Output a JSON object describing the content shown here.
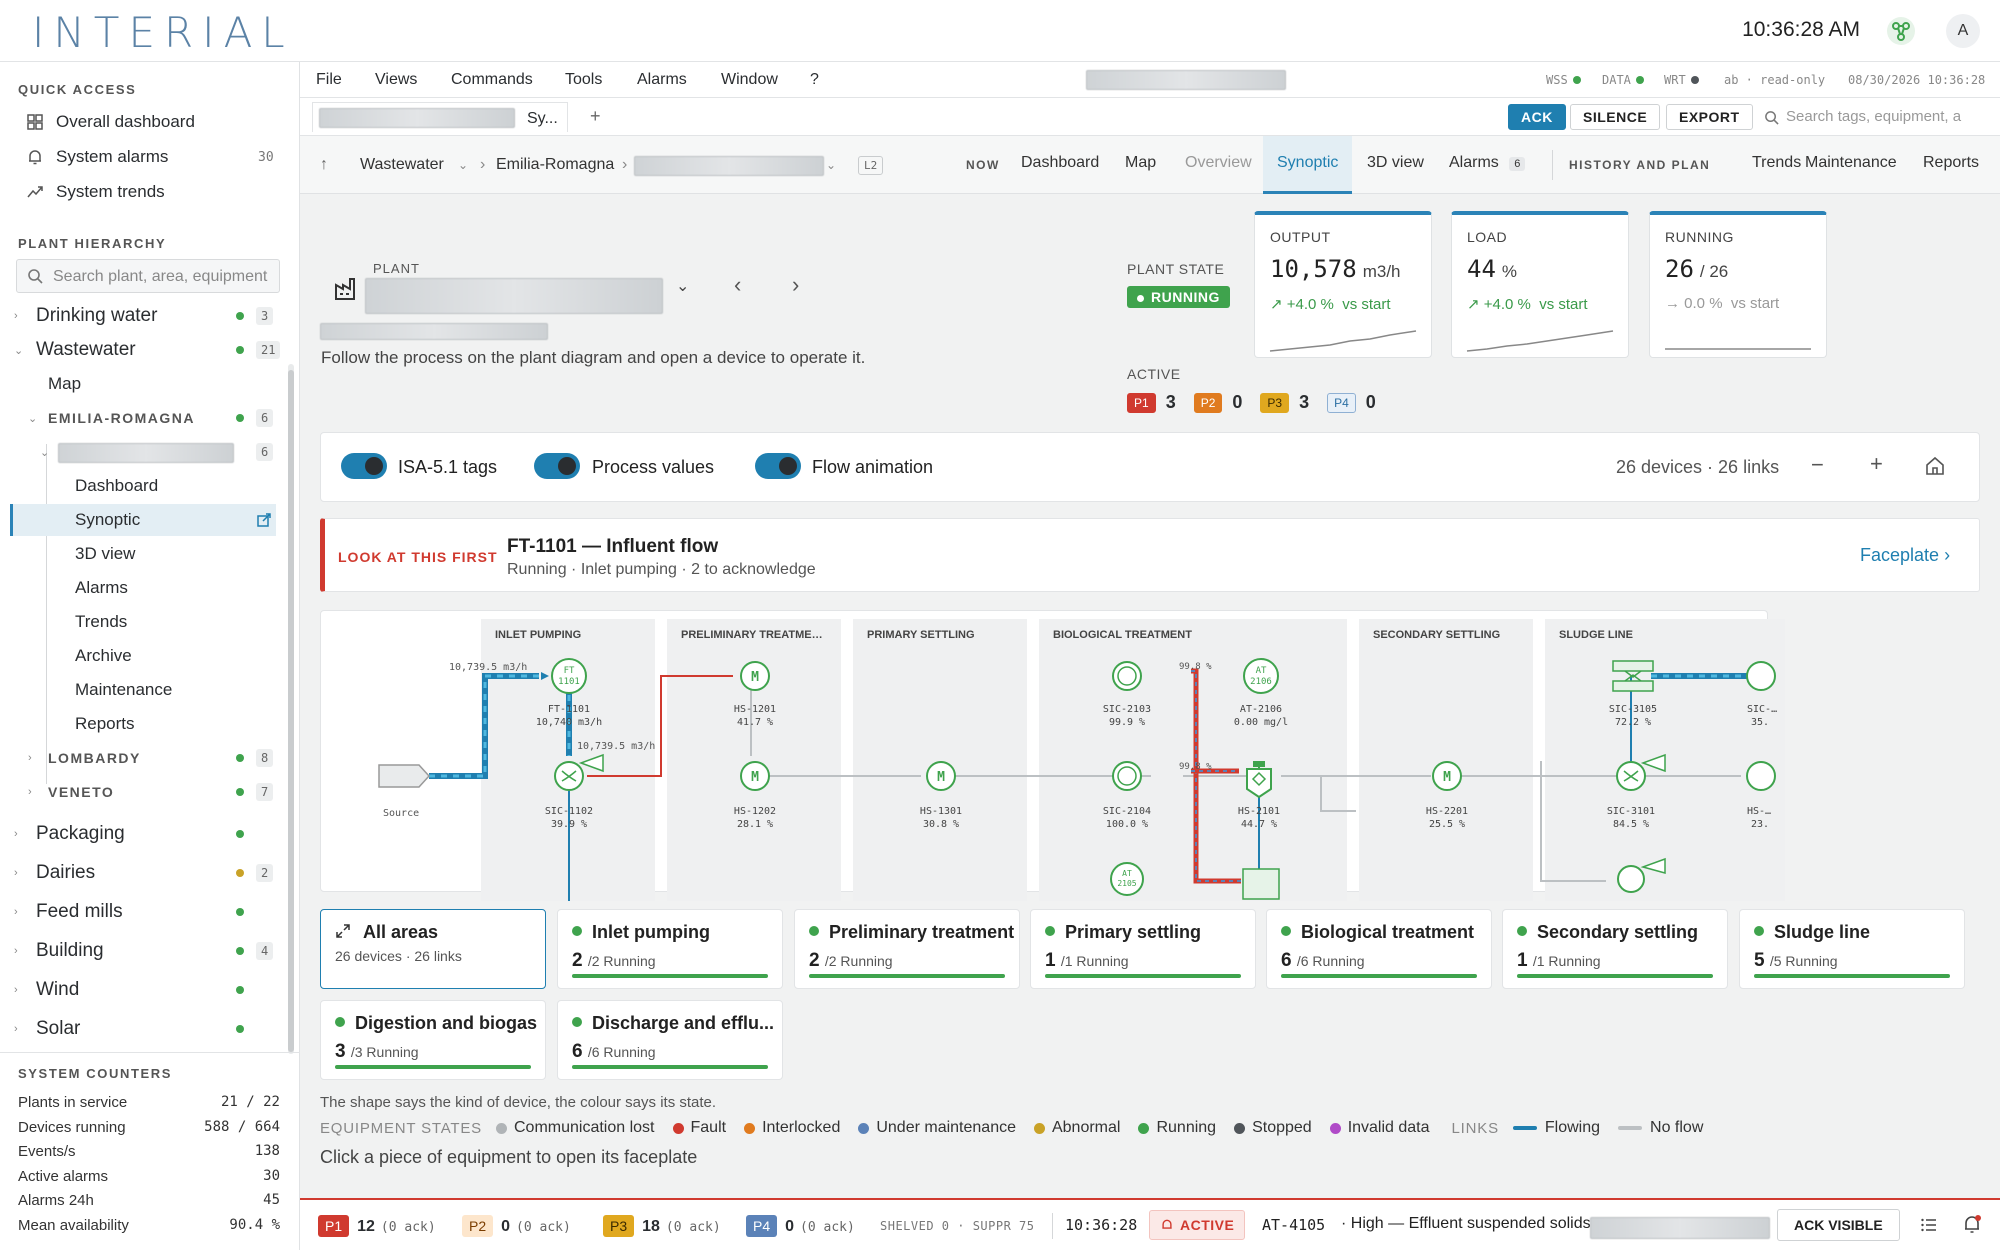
{
  "app": {
    "logo": "INTERIAL",
    "clock": "10:36:28 AM",
    "avatar": "A"
  },
  "sidebar": {
    "quick_access_title": "QUICK ACCESS",
    "quick_access": [
      {
        "label": "Overall dashboard",
        "icon": "grid-icon",
        "count": ""
      },
      {
        "label": "System alarms",
        "icon": "bell-icon",
        "count": "30"
      },
      {
        "label": "System trends",
        "icon": "trend-icon",
        "count": ""
      }
    ],
    "hierarchy_title": "PLANT HIERARCHY",
    "search_placeholder": "Search plant, area, equipment",
    "tree": [
      {
        "label": "Drinking water",
        "count": "3",
        "status": "#3fa34d"
      },
      {
        "label": "Wastewater",
        "count": "21",
        "status": "#3fa34d"
      },
      {
        "label": "Map"
      },
      {
        "label": "EMILIA-ROMAGNA",
        "count": "6",
        "status": "#3fa34d"
      },
      {
        "label": "",
        "count": "6"
      },
      {
        "label": "Dashboard"
      },
      {
        "label": "Synoptic"
      },
      {
        "label": "3D view"
      },
      {
        "label": "Alarms"
      },
      {
        "label": "Trends"
      },
      {
        "label": "Archive"
      },
      {
        "label": "Maintenance"
      },
      {
        "label": "Reports"
      },
      {
        "label": "LOMBARDY",
        "count": "8",
        "status": "#3fa34d"
      },
      {
        "label": "VENETO",
        "count": "7",
        "status": "#3fa34d"
      },
      {
        "label": "Packaging",
        "count": "",
        "status": "#3fa34d"
      },
      {
        "label": "Dairies",
        "count": "2",
        "status": "#c9a227"
      },
      {
        "label": "Feed mills",
        "count": "",
        "status": "#3fa34d"
      },
      {
        "label": "Building",
        "count": "4",
        "status": "#3fa34d"
      },
      {
        "label": "Wind",
        "count": "",
        "status": "#3fa34d"
      },
      {
        "label": "Solar",
        "count": "",
        "status": "#3fa34d"
      }
    ],
    "counters_title": "SYSTEM COUNTERS",
    "counters": [
      {
        "label": "Plants in service",
        "value": "21 / 22"
      },
      {
        "label": "Devices running",
        "value": "588 / 664"
      },
      {
        "label": "Events/s",
        "value": "138"
      },
      {
        "label": "Active alarms",
        "value": "30"
      },
      {
        "label": "Alarms 24h",
        "value": "45"
      },
      {
        "label": "Mean availability",
        "value": "90.4 %"
      }
    ]
  },
  "menubar": {
    "items": [
      "File",
      "Views",
      "Commands",
      "Tools",
      "Alarms",
      "Window",
      "?"
    ],
    "status": {
      "wss": "WSS",
      "data": "DATA",
      "wrt": "WRT",
      "user": "ab · read-only",
      "datetime": "08/30/2026 10:36:28"
    }
  },
  "tabbar": {
    "tab_label": "Sy...",
    "add": "+",
    "ack": "ACK",
    "silence": "SILENCE",
    "export": "EXPORT",
    "search_placeholder": "Search tags, equipment, a"
  },
  "navbar": {
    "crumbs": [
      "Wastewater",
      "Emilia-Romagna"
    ],
    "level": "L2",
    "now_label": "NOW",
    "tabs": [
      "Dashboard",
      "Map",
      "Overview",
      "Synoptic",
      "3D view",
      "Alarms"
    ],
    "alarms_count": "6",
    "history_label": "HISTORY AND PLAN",
    "history_tabs": [
      "Trends",
      "Maintenance",
      "Reports"
    ]
  },
  "plant": {
    "label": "PLANT",
    "hint": "Follow the process on the plant diagram and open a device to operate it.",
    "state_label": "PLANT STATE",
    "state": "RUNNING",
    "active_label": "ACTIVE",
    "priorities": [
      {
        "p": "P1",
        "n": "3",
        "bg": "#d03a2f",
        "fg": "#ffffff"
      },
      {
        "p": "P2",
        "n": "0",
        "bg": "#e07b1f",
        "fg": "#ffffff"
      },
      {
        "p": "P3",
        "n": "3",
        "bg": "#e0a81f",
        "fg": "#3a2a00"
      },
      {
        "p": "P4",
        "n": "0",
        "bg": "#e8f0f8",
        "fg": "#2b6fa3"
      }
    ]
  },
  "kpis": [
    {
      "title": "OUTPUT",
      "value": "10,578",
      "unit": "m3/h",
      "delta": "+4.0 %",
      "delta_note": "vs start"
    },
    {
      "title": "LOAD",
      "value": "44",
      "unit": "%",
      "delta": "+4.0 %",
      "delta_note": "vs start"
    },
    {
      "title": "RUNNING",
      "value": "26",
      "unit": "/ 26",
      "delta": "0.0 %",
      "delta_note": "vs start"
    }
  ],
  "toggles": {
    "isa": "ISA-5.1 tags",
    "values": "Process values",
    "flow": "Flow animation",
    "summary": "26 devices · 26 links",
    "zoom_out": "−",
    "zoom_in": "+"
  },
  "attention": {
    "label": "LOOK AT THIS FIRST",
    "title": "FT-1101 — Influent flow",
    "sub": "Running · Inlet pumping · 2 to acknowledge",
    "link": "Faceplate"
  },
  "diagram": {
    "sections": [
      "INLET PUMPING",
      "PRELIMINARY TREATME…",
      "PRIMARY SETTLING",
      "BIOLOGICAL TREATMENT",
      "SECONDARY SETTLING",
      "SLUDGE LINE"
    ],
    "source": "Source",
    "devices": [
      {
        "tag": "FT-1101",
        "sym": "FT",
        "num": "1101",
        "value": "10,740 m3/h"
      },
      {
        "tag": "SIC-1102",
        "value": "39.9 %"
      },
      {
        "tag": "HS-1201",
        "sym": "M",
        "value": "41.7 %"
      },
      {
        "tag": "HS-1202",
        "sym": "M",
        "value": "28.1 %"
      },
      {
        "tag": "HS-1301",
        "sym": "M",
        "value": "30.8 %"
      },
      {
        "tag": "SIC-2103",
        "value": "99.9 %"
      },
      {
        "tag": "AT-2106",
        "sym": "AT",
        "num": "2106",
        "value": "0.00 mg/l"
      },
      {
        "tag": "SIC-2104",
        "value": "100.0 %"
      },
      {
        "tag": "HS-2101",
        "value": "44.7 %"
      },
      {
        "tag": "AT",
        "num": "2105"
      },
      {
        "tag": "HS-2201",
        "sym": "M",
        "value": "25.5 %"
      },
      {
        "tag": "SIC-3105",
        "value": "72.2 %"
      },
      {
        "tag": "SIC-3101",
        "value": "84.5 %"
      },
      {
        "tag": "SIC-…",
        "value": "35."
      },
      {
        "tag": "HS-…",
        "value": "23."
      }
    ],
    "flows": [
      "10,739.5 m3/h",
      "10,739.5 m3/h",
      "99.8 %",
      "99.8 %"
    ]
  },
  "areas": [
    {
      "name": "All areas",
      "sub": "26 devices · 26 links"
    },
    {
      "name": "Inlet pumping",
      "run": "2",
      "of": "/2 Running"
    },
    {
      "name": "Preliminary treatment",
      "run": "2",
      "of": "/2 Running"
    },
    {
      "name": "Primary settling",
      "run": "1",
      "of": "/1 Running"
    },
    {
      "name": "Biological treatment",
      "run": "6",
      "of": "/6 Running"
    },
    {
      "name": "Secondary settling",
      "run": "1",
      "of": "/1 Running"
    },
    {
      "name": "Sludge line",
      "run": "5",
      "of": "/5 Running"
    },
    {
      "name": "Digestion and biogas",
      "run": "3",
      "of": "/3 Running"
    },
    {
      "name": "Discharge and efflu...",
      "run": "6",
      "of": "/6 Running"
    }
  ],
  "legend": {
    "hint": "The shape says the kind of device, the colour says its state.",
    "states_label": "EQUIPMENT STATES",
    "states": [
      {
        "label": "Communication lost",
        "color": "#b0b4b7"
      },
      {
        "label": "Fault",
        "color": "#d03a2f"
      },
      {
        "label": "Interlocked",
        "color": "#e07b1f"
      },
      {
        "label": "Under maintenance",
        "color": "#5b82b8"
      },
      {
        "label": "Abnormal",
        "color": "#c9a227"
      },
      {
        "label": "Running",
        "color": "#3fa34d"
      },
      {
        "label": "Stopped",
        "color": "#50555a"
      },
      {
        "label": "Invalid data",
        "color": "#b04bc8"
      }
    ],
    "links_label": "LINKS",
    "links": [
      {
        "label": "Flowing",
        "color": "#1f7fb0"
      },
      {
        "label": "No flow",
        "color": "#bcc0c3"
      }
    ],
    "cta": "Click a piece of equipment to open its faceplate"
  },
  "footer": {
    "p": [
      {
        "p": "P1",
        "count": "12",
        "ack": "(0 ack)",
        "bg": "#d03a2f",
        "fg": "#ffffff"
      },
      {
        "p": "P2",
        "count": "0",
        "ack": "(0 ack)",
        "bg": "#fde6cc",
        "fg": "#7a3d00"
      },
      {
        "p": "P3",
        "count": "18",
        "ack": "(0 ack)",
        "bg": "#e0a81f",
        "fg": "#3a2a00"
      },
      {
        "p": "P4",
        "count": "0",
        "ack": "(0 ack)",
        "bg": "#5b82b8",
        "fg": "#ffffff"
      }
    ],
    "shelved": "SHELVED 0 · SUPPR 75",
    "time": "10:36:28",
    "active": "ACTIVE",
    "alarm_tag": "AT-4105",
    "alarm_text": "· High — Effluent suspended solids —",
    "ack_visible": "ACK VISIBLE"
  },
  "colors": {
    "accent": "#1f7fb0",
    "running": "#3fa34d",
    "alarm": "#d03a2f"
  }
}
